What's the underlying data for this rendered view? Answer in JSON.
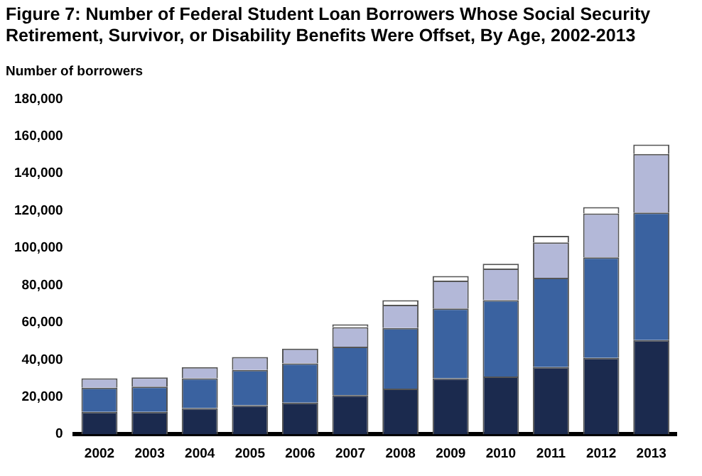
{
  "chart_data": {
    "type": "bar",
    "title": "Figure 7: Number of Federal Student Loan Borrowers Whose Social Security Retirement, Survivor, or Disability Benefits Were Offset, By Age, 2002-2013",
    "ylabel": "Number of borrowers",
    "categories": [
      "2002",
      "2003",
      "2004",
      "2005",
      "2006",
      "2007",
      "2008",
      "2009",
      "2010",
      "2011",
      "2012",
      "2013"
    ],
    "stacked": true,
    "series": [
      {
        "color": "#1b2a4e",
        "values": [
          12000,
          12000,
          14000,
          15500,
          17000,
          21000,
          24500,
          30000,
          31000,
          36000,
          41000,
          50500
        ]
      },
      {
        "color": "#3a62a0",
        "values": [
          13000,
          13500,
          16000,
          19000,
          21000,
          26000,
          32500,
          37500,
          41000,
          48000,
          54000,
          68500
        ]
      },
      {
        "color": "#b3b8d8",
        "values": [
          5000,
          5000,
          6000,
          7000,
          8000,
          10500,
          12500,
          15000,
          17000,
          19000,
          23500,
          31500
        ]
      },
      {
        "color": "#ffffff",
        "values": [
          null,
          null,
          null,
          null,
          null,
          1500,
          2500,
          2500,
          2500,
          3500,
          3500,
          5000
        ]
      }
    ],
    "ylim": [
      0,
      180000
    ],
    "yticks": [
      {
        "value": 0,
        "label": "0"
      },
      {
        "value": 20000,
        "label": "20,000"
      },
      {
        "value": 40000,
        "label": "40,000"
      },
      {
        "value": 60000,
        "label": "60,000"
      },
      {
        "value": 80000,
        "label": "80,000"
      },
      {
        "value": 100000,
        "label": "100,000"
      },
      {
        "value": 120000,
        "label": "120,000"
      },
      {
        "value": 140000,
        "label": "140,000"
      },
      {
        "value": 160000,
        "label": "160,000"
      },
      {
        "value": 180000,
        "label": "180,000"
      }
    ],
    "grid": false
  }
}
